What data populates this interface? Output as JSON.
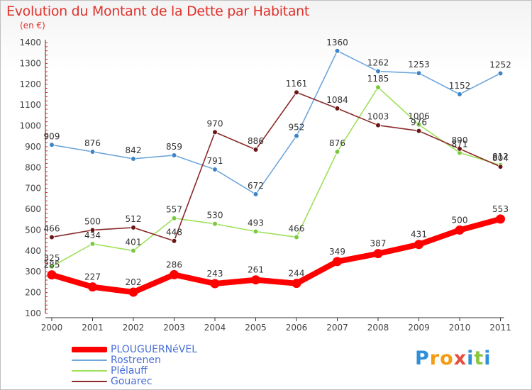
{
  "header": {
    "title": "Evolution du Montant de la Dette par Habitant",
    "unit": "(en €)"
  },
  "brand": {
    "text": "Proxiti",
    "letters": [
      "P",
      "r",
      "o",
      "x",
      "i",
      "t",
      "i"
    ],
    "letter_colors": [
      "#2f8fd8",
      "#f39c12",
      "#f39c12",
      "#e74c3c",
      "#2f8fd8",
      "#8cc63f",
      "#2f8fd8"
    ]
  },
  "chart_data": {
    "type": "line",
    "x": [
      "2000",
      "2001",
      "2002",
      "2003",
      "2004",
      "2005",
      "2006",
      "2007",
      "2008",
      "2009",
      "2010",
      "2011"
    ],
    "ylim": [
      100,
      1400
    ],
    "yticks": [
      100,
      200,
      300,
      400,
      500,
      600,
      700,
      800,
      900,
      1000,
      1100,
      1200,
      1300,
      1400
    ],
    "grid": false,
    "legend_position": "bottom-left",
    "series": [
      {
        "name": "PLOUGUERNéVEL",
        "color": "#ff0000",
        "marker_color": "#ff0000",
        "emphasis": true,
        "values": [
          285,
          227,
          202,
          286,
          243,
          261,
          244,
          349,
          387,
          431,
          500,
          553
        ],
        "labels": [
          "285",
          "227",
          "202",
          "286",
          "243",
          "261",
          "244",
          "349",
          "387",
          "431",
          "500",
          "553"
        ]
      },
      {
        "name": "Rostrenen",
        "color": "#6fa8dc",
        "marker_color": "#3d85c6",
        "emphasis": false,
        "values": [
          909,
          876,
          842,
          859,
          791,
          672,
          952,
          1360,
          1262,
          1253,
          1152,
          1252
        ],
        "labels": [
          "909",
          "876",
          "842",
          "859",
          "791",
          "672",
          "952",
          "1360",
          "1262",
          "1253",
          "1152",
          "1252"
        ]
      },
      {
        "name": "Plélauff",
        "color": "#9fe05a",
        "marker_color": "#7ac943",
        "emphasis": false,
        "values": [
          325,
          434,
          401,
          557,
          530,
          493,
          466,
          876,
          1185,
          1006,
          871,
          812
        ],
        "labels": [
          "325",
          "434",
          "401",
          "557",
          "530",
          "493",
          "466",
          "876",
          "1185",
          "1006",
          "871",
          "812"
        ]
      },
      {
        "name": "Gouarec",
        "color": "#8b2a2a",
        "marker_color": "#6b1414",
        "emphasis": false,
        "values": [
          466,
          500,
          512,
          448,
          970,
          886,
          1161,
          1084,
          1003,
          976,
          890,
          804
        ],
        "labels": [
          "466",
          "500",
          "512",
          "448",
          "970",
          "886",
          "1161",
          "1084",
          "1003",
          "976",
          "890",
          "804"
        ]
      }
    ]
  }
}
